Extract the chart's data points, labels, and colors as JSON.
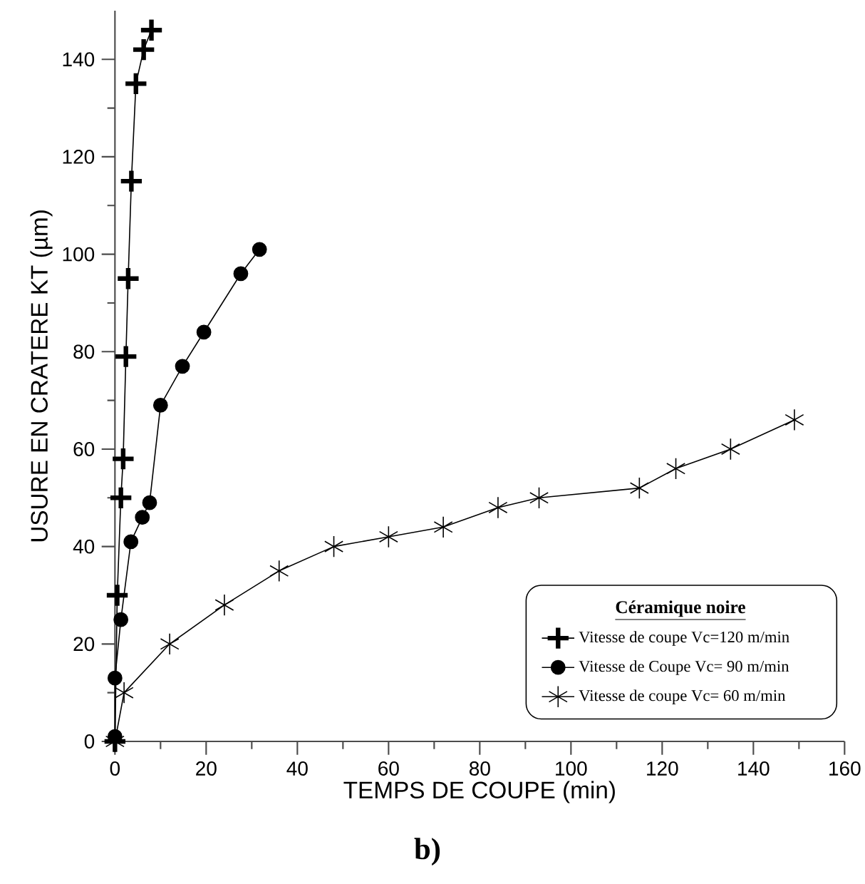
{
  "chart_data": {
    "type": "line",
    "xlabel": "TEMPS DE COUPE (min)",
    "ylabel": "USURE EN CRATERE KT (µm)",
    "legend_title": "Céramique noire",
    "annotations": [
      "b)"
    ],
    "xlim": [
      0,
      160
    ],
    "ylim": [
      0,
      150
    ],
    "xticks": [
      0,
      20,
      40,
      60,
      80,
      100,
      120,
      140,
      160
    ],
    "yticks": [
      0,
      20,
      40,
      60,
      80,
      100,
      120,
      140
    ],
    "legend": "bottom right",
    "line_style": "solid",
    "series": [
      {
        "name": "Vitesse de coupe Vc=120 m/min",
        "color": "#000000",
        "marker": "cross",
        "x": [
          0,
          0.5,
          1.3,
          1.8,
          2.4,
          2.9,
          3.6,
          4.6,
          6.3,
          8
        ],
        "values": [
          0,
          30,
          50,
          58,
          79,
          95,
          115,
          135,
          142,
          146
        ]
      },
      {
        "name": "Vitesse de Coupe Vc= 90 m/min",
        "color": "#000000",
        "marker": "circle",
        "x": [
          0,
          0,
          1.3,
          3.5,
          6,
          7.6,
          10,
          14.8,
          19.5,
          27.6,
          31.7
        ],
        "values": [
          1,
          13,
          25,
          41,
          46,
          49,
          69,
          77,
          84,
          96,
          101
        ]
      },
      {
        "name": "Vitesse de coupe Vc= 60 m/min",
        "color": "#000000",
        "marker": "cross",
        "x": [
          0,
          2,
          12,
          24,
          36,
          48,
          60,
          72,
          84,
          93,
          115,
          123,
          135,
          149
        ],
        "values": [
          0,
          10,
          20,
          28,
          35,
          40,
          42,
          44,
          48,
          50,
          52,
          56,
          60,
          66
        ]
      }
    ]
  }
}
